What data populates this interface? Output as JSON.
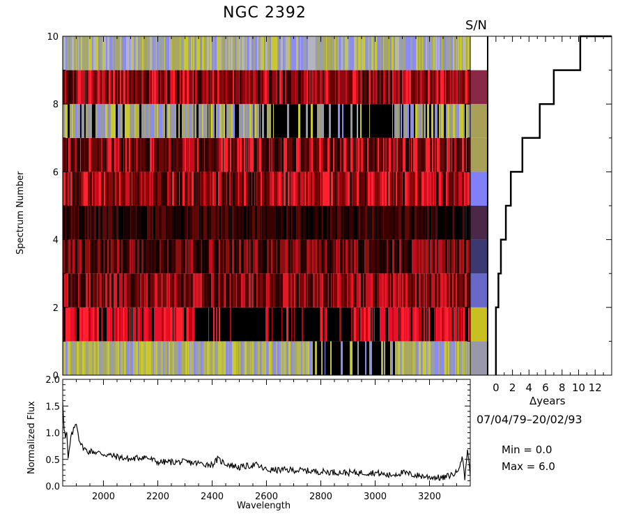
{
  "chart_data": [
    {
      "type": "heatmap",
      "title": "NGC 2392",
      "ylabel": "Spectrum Number",
      "xlim": [
        1850,
        3350
      ],
      "ylim": [
        0,
        10
      ],
      "yticks": [
        0,
        2,
        4,
        6,
        8,
        10
      ],
      "rows": [
        {
          "spectrum": 1,
          "palette": [
            "#9aa0a0",
            "#a8a860",
            "#b8b850",
            "#8c8cf0",
            "#c8c830"
          ],
          "dark_gaps": [
            2770,
            3080
          ]
        },
        {
          "spectrum": 2,
          "palette": [
            "#e8102a",
            "#ff2030",
            "#c00010",
            "#000000"
          ],
          "dark_gaps": [
            2330,
            2900
          ]
        },
        {
          "spectrum": 3,
          "palette": [
            "#5a0000",
            "#7a0808",
            "#c81020",
            "#2a0000",
            "#e01828"
          ],
          "dark_gaps": []
        },
        {
          "spectrum": 4,
          "palette": [
            "#2a0000",
            "#4a0000",
            "#100000",
            "#8a1010",
            "#c01020"
          ],
          "dark_gaps": []
        },
        {
          "spectrum": 5,
          "palette": [
            "#000000",
            "#1a0000",
            "#3a0000",
            "#600808"
          ],
          "dark_gaps": []
        },
        {
          "spectrum": 6,
          "palette": [
            "#6a0000",
            "#8a0808",
            "#d01020",
            "#2a0000",
            "#ff2030"
          ],
          "dark_gaps": []
        },
        {
          "spectrum": 7,
          "palette": [
            "#4a0000",
            "#6a0808",
            "#c01020",
            "#200000",
            "#ff2030"
          ],
          "dark_gaps": []
        },
        {
          "spectrum": 8,
          "palette": [
            "#9898a0",
            "#a8a860",
            "#8c8cf0",
            "#c8c830",
            "#000000"
          ],
          "dark_gaps": [
            2570,
            3050
          ]
        },
        {
          "spectrum": 9,
          "palette": [
            "#6a0000",
            "#c81020",
            "#ff2030",
            "#300000",
            "#900810"
          ],
          "dark_gaps": []
        },
        {
          "spectrum": 10,
          "palette": [
            "#9aa0a8",
            "#8c8cf0",
            "#a8a860",
            "#b4b4c0",
            "#c8c830"
          ],
          "dark_gaps": []
        }
      ]
    },
    {
      "type": "heatmap",
      "title": "S/N",
      "rows": [
        {
          "spectrum": 1,
          "color": "#9898a8"
        },
        {
          "spectrum": 2,
          "color": "#c8c020"
        },
        {
          "spectrum": 3,
          "color": "#6868c8"
        },
        {
          "spectrum": 4,
          "color": "#3a3a70"
        },
        {
          "spectrum": 5,
          "color": "#4a2848"
        },
        {
          "spectrum": 6,
          "color": "#8080f8"
        },
        {
          "spectrum": 7,
          "color": "#a8a058"
        },
        {
          "spectrum": 8,
          "color": "#a8a058"
        },
        {
          "spectrum": 9,
          "color": "#8a2848"
        },
        {
          "spectrum": 10,
          "color": "#ffffff"
        }
      ]
    },
    {
      "type": "line",
      "xlabel": "Δyears",
      "xlim": [
        -1,
        14
      ],
      "ylim": [
        0,
        10
      ],
      "xticks": [
        0,
        2,
        4,
        6,
        8,
        10,
        12
      ],
      "steps": [
        {
          "spectrum": 1,
          "years": 0
        },
        {
          "spectrum": 2,
          "years": 0
        },
        {
          "spectrum": 3,
          "years": 0.3
        },
        {
          "spectrum": 4,
          "years": 0.6
        },
        {
          "spectrum": 5,
          "years": 1.2
        },
        {
          "spectrum": 6,
          "years": 1.8
        },
        {
          "spectrum": 7,
          "years": 3.2
        },
        {
          "spectrum": 8,
          "years": 5.3
        },
        {
          "spectrum": 9,
          "years": 7.0
        },
        {
          "spectrum": 10,
          "years": 10.2
        }
      ]
    },
    {
      "type": "line",
      "xlabel": "Wavelength",
      "ylabel": "Normalized Flux",
      "xlim": [
        1850,
        3350
      ],
      "ylim": [
        0,
        2.0
      ],
      "xticks": [
        2000,
        2200,
        2400,
        2600,
        2800,
        3000,
        3200
      ],
      "yticks": [
        "0.0",
        "0.5",
        "1.0",
        "1.5",
        "2.0"
      ],
      "x": [
        1850,
        1855,
        1860,
        1865,
        1870,
        1880,
        1890,
        1900,
        1910,
        1920,
        1940,
        1960,
        2000,
        2050,
        2100,
        2150,
        2200,
        2300,
        2400,
        2420,
        2450,
        2500,
        2560,
        2600,
        2700,
        2800,
        2900,
        3000,
        3050,
        3100,
        3150,
        3200,
        3250,
        3300,
        3320,
        3330,
        3340,
        3350
      ],
      "y": [
        1.6,
        1.1,
        0.9,
        1.0,
        0.5,
        0.9,
        1.05,
        1.2,
        0.9,
        0.75,
        0.65,
        0.65,
        0.6,
        0.55,
        0.5,
        0.55,
        0.45,
        0.45,
        0.4,
        0.5,
        0.42,
        0.35,
        0.4,
        0.3,
        0.3,
        0.27,
        0.25,
        0.25,
        0.2,
        0.25,
        0.2,
        0.17,
        0.15,
        0.25,
        0.55,
        0.15,
        0.7,
        0.2
      ]
    }
  ],
  "labels": {
    "date_range": "07/04/79–20/02/93",
    "min_text": "Min =   0.0",
    "max_text": "Max =   6.0"
  }
}
